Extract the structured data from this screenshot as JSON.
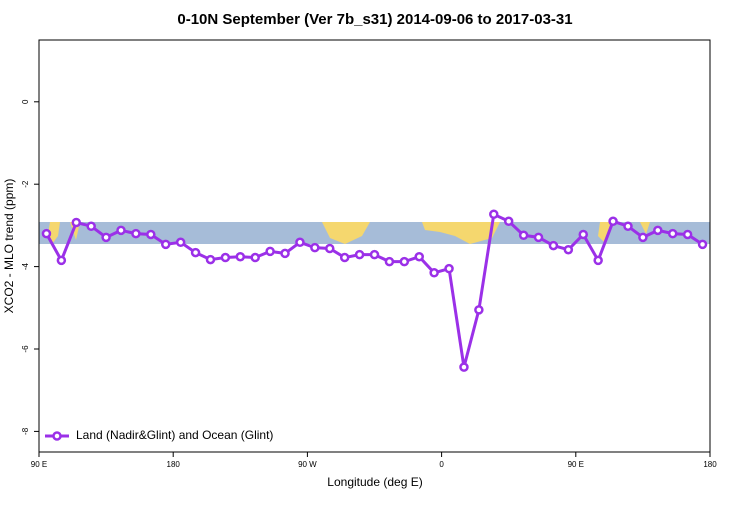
{
  "chart_data": {
    "type": "line",
    "title": "0-10N September (Ver 7b_s31)   2014-09-06 to 2017-03-31",
    "x_label": "Longitude (deg E)",
    "y_label": "XCO2 - MLO trend (ppm)",
    "x": [
      95,
      105,
      115,
      125,
      135,
      145,
      155,
      165,
      175,
      185,
      195,
      205,
      215,
      225,
      235,
      245,
      255,
      265,
      275,
      285,
      295,
      305,
      315,
      325,
      335,
      345,
      355,
      365,
      375,
      385,
      395,
      405,
      415,
      425,
      435,
      445,
      455,
      465,
      475,
      485,
      495,
      505,
      515,
      525,
      535
    ],
    "series": [
      {
        "name": "Land (Nadir&Glint) and Ocean (Glint)",
        "color": "#9b30e8",
        "values": [
          -3.2,
          -3.85,
          -2.93,
          -3.02,
          -3.29,
          -3.12,
          -3.2,
          -3.22,
          -3.46,
          -3.41,
          -3.66,
          -3.83,
          -3.78,
          -3.76,
          -3.78,
          -3.63,
          -3.68,
          -3.41,
          -3.54,
          -3.56,
          -3.78,
          -3.71,
          -3.71,
          -3.88,
          -3.88,
          -3.76,
          -4.15,
          -4.05,
          -6.44,
          -5.05,
          -2.73,
          -2.9,
          -3.24,
          -3.29,
          -3.49,
          -3.59,
          -3.22,
          -3.85,
          -2.9,
          -3.02,
          -3.29,
          -3.12,
          -3.2,
          -3.22,
          -3.46
        ]
      }
    ],
    "xlim": [
      90,
      540
    ],
    "xticks": [
      {
        "value": 90,
        "label": "90 E"
      },
      {
        "value": 180,
        "label": "180"
      },
      {
        "value": 270,
        "label": "90 W"
      },
      {
        "value": 360,
        "label": "0"
      },
      {
        "value": 450,
        "label": "90 E"
      },
      {
        "value": 540,
        "label": "180"
      }
    ],
    "ylim": [
      -8.5,
      1.5
    ],
    "yticks": [
      0,
      -2,
      -4,
      -6,
      -8
    ],
    "legend": "bottom-left"
  }
}
